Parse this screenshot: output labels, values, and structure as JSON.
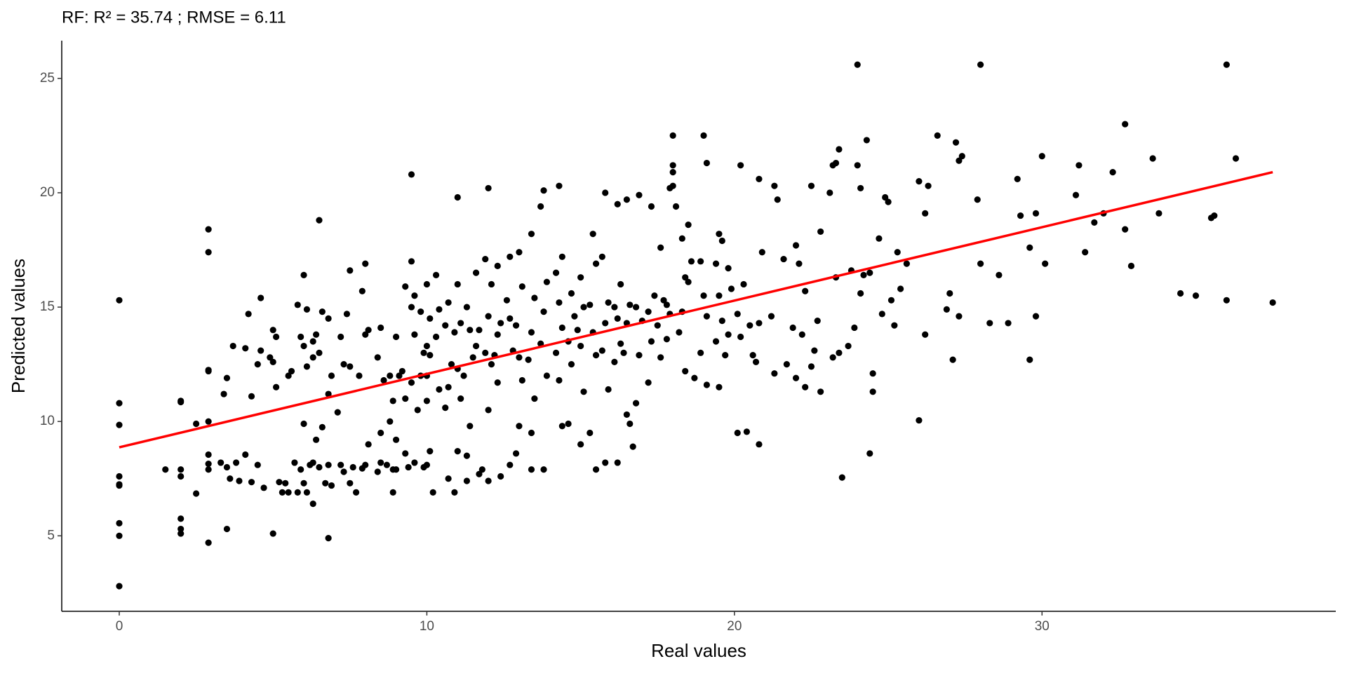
{
  "chart_data": {
    "type": "scatter",
    "title": "RF: R² =  35.74 ; RMSE =  6.11",
    "x_label": "Real values",
    "y_label": "Predicted values",
    "xlim": [
      -1.87,
      39.55
    ],
    "ylim": [
      1.7,
      26.65
    ],
    "xticks": [
      0,
      10,
      20,
      30
    ],
    "yticks": [
      5,
      10,
      15,
      20,
      25
    ],
    "grid": false,
    "color": "#000000",
    "x": [
      0,
      0,
      0,
      0,
      0,
      0,
      0,
      0,
      0,
      1.5,
      2,
      2,
      2,
      2,
      2,
      2,
      2,
      2.5,
      2.5,
      2.9,
      2.9,
      2.9,
      2.9,
      2.9,
      2.9,
      2.9,
      2.9,
      2.9,
      3.5,
      3.3,
      3.6,
      3.5,
      3.4,
      3.5,
      3.8,
      3.9,
      3.7,
      4.2,
      4.1,
      4.3,
      4.1,
      4.3,
      4.5,
      4.6,
      4.5,
      4.7,
      4.6,
      5.0,
      5.1,
      4.9,
      5.0,
      5.1,
      5.2,
      5.3,
      5.0,
      5.4,
      5.5,
      5.6,
      5.5,
      5.8,
      5.9,
      5.7,
      5.9,
      5.8,
      6.0,
      6.1,
      6.0,
      6.1,
      6.0,
      6.2,
      6.0,
      6.1,
      6.3,
      6.4,
      6.3,
      6.4,
      6.3,
      6.3,
      6.5,
      6.6,
      6.5,
      6.6,
      6.5,
      6.7,
      6.8,
      6.9,
      6.8,
      6.8,
      6.9,
      6.8,
      7.2,
      7.3,
      7.1,
      7.2,
      7.3,
      7.5,
      7.4,
      7.5,
      7.6,
      7.5,
      7.8,
      7.9,
      7.7,
      8.0,
      7.9,
      8.1,
      8.0,
      8.1,
      8.0,
      8.5,
      8.4,
      8.6,
      8.5,
      8.5,
      8.4,
      8.8,
      8.9,
      8.8,
      8.7,
      8.9,
      9.0,
      9.1,
      9.0,
      9.0,
      8.9,
      9.3,
      9.2,
      9.3,
      9.3,
      9.4,
      9.5,
      9.5,
      9.6,
      9.5,
      9.6,
      9.5,
      9.6,
      9.8,
      9.9,
      9.8,
      9.7,
      9.9,
      10.0,
      10.1,
      10.0,
      10.1,
      10.0,
      10.0,
      10.1,
      10.0,
      10.3,
      10.4,
      10.3,
      10.4,
      10.2,
      10.7,
      10.6,
      10.8,
      10.7,
      10.6,
      10.7,
      11.0,
      11.0,
      11.1,
      10.9,
      11.0,
      11.1,
      11.0,
      10.9,
      11.3,
      11.4,
      11.2,
      11.4,
      11.3,
      11.3,
      11.6,
      11.7,
      11.6,
      11.5,
      11.7,
      12.0,
      11.9,
      12.1,
      12.0,
      11.9,
      12.1,
      12.0,
      11.8,
      12.0,
      12.3,
      12.4,
      12.3,
      12.2,
      12.3,
      12.4,
      12.7,
      12.6,
      12.7,
      12.8,
      12.7,
      13.0,
      13.1,
      12.9,
      13.0,
      13.1,
      13.0,
      12.9,
      13.4,
      13.5,
      13.4,
      13.3,
      13.5,
      13.4,
      13.4,
      13.8,
      13.7,
      13.9,
      13.8,
      13.7,
      13.9,
      13.8,
      14.3,
      14.4,
      14.2,
      14.3,
      14.4,
      14.2,
      14.3,
      14.4,
      14.7,
      14.8,
      14.6,
      14.7,
      14.6,
      15.0,
      15.1,
      14.9,
      15.0,
      15.1,
      15.0,
      15.4,
      15.5,
      15.3,
      15.4,
      15.5,
      15.3,
      15.5,
      15.8,
      15.7,
      15.9,
      15.8,
      15.7,
      15.9,
      15.8,
      16.2,
      16.3,
      16.1,
      16.2,
      16.3,
      16.1,
      16.2,
      16.5,
      16.6,
      16.5,
      16.4,
      16.5,
      16.6,
      16.9,
      16.8,
      17.0,
      16.9,
      16.8,
      16.7,
      17.3,
      17.4,
      17.2,
      17.3,
      17.2,
      17.6,
      17.7,
      17.5,
      17.6,
      17.9,
      17.8,
      17.9,
      17.8,
      18.0,
      18.0,
      18.0,
      18.0,
      18.1,
      18.3,
      18.4,
      18.3,
      18.4,
      18.2,
      18.5,
      18.6,
      18.5,
      18.7,
      19.0,
      19.1,
      18.9,
      19.0,
      19.1,
      18.9,
      19.1,
      19.5,
      19.6,
      19.4,
      19.5,
      19.6,
      19.4,
      19.5,
      19.8,
      19.9,
      19.8,
      19.7,
      20.2,
      20.3,
      20.1,
      20.2,
      20.1,
      20.5,
      20.6,
      20.4,
      20.8,
      20.9,
      20.8,
      20.7,
      20.8,
      21.3,
      21.4,
      21.2,
      21.3,
      21.6,
      21.7,
      22.0,
      22.1,
      21.9,
      22.0,
      22.3,
      22.2,
      22.3,
      22.5,
      22.6,
      22.5,
      22.8,
      22.7,
      22.8,
      23.2,
      23.1,
      23.3,
      23.2,
      23.4,
      23.3,
      23.4,
      23.5,
      23.8,
      23.9,
      23.7,
      24.0,
      24.1,
      24.0,
      24.2,
      24.1,
      24.3,
      24.4,
      24.5,
      24.4,
      24.5,
      24.7,
      24.8,
      24.9,
      25.0,
      25.1,
      25.3,
      25.4,
      25.2,
      25.6,
      26.0,
      26.0,
      26.2,
      26.3,
      26.2,
      26.6,
      26.9,
      27.0,
      27.1,
      27.2,
      27.3,
      27.3,
      27.4,
      28.0,
      27.9,
      28.0,
      28.3,
      28.6,
      28.9,
      29.2,
      29.3,
      29.6,
      29.6,
      29.8,
      29.8,
      30.0,
      30.1,
      31.2,
      31.1,
      31.4,
      31.7,
      32.0,
      32.3,
      32.7,
      32.7,
      32.9,
      33.6,
      33.8,
      34.5,
      35.0,
      35.6,
      35.5,
      36.0,
      36.0,
      36.3,
      37.5
    ],
    "values": [
      15.3,
      10.8,
      9.85,
      7.6,
      7.25,
      7.2,
      5.55,
      5.0,
      2.8,
      7.9,
      10.9,
      10.85,
      7.9,
      7.6,
      5.75,
      5.3,
      5.1,
      9.9,
      6.85,
      18.4,
      17.4,
      12.25,
      12.2,
      10.0,
      8.55,
      8.15,
      7.9,
      4.7,
      8.0,
      8.2,
      7.5,
      11.9,
      11.2,
      5.3,
      8.2,
      7.4,
      13.3,
      14.7,
      13.2,
      11.1,
      8.55,
      7.35,
      12.5,
      13.1,
      8.1,
      7.1,
      15.4,
      14.0,
      13.7,
      12.8,
      12.6,
      11.5,
      7.35,
      6.9,
      5.1,
      7.3,
      6.9,
      12.2,
      12.0,
      15.1,
      13.7,
      8.2,
      7.9,
      6.9,
      16.4,
      14.9,
      13.3,
      12.4,
      9.9,
      8.1,
      7.3,
      6.9,
      13.5,
      13.8,
      12.8,
      9.2,
      8.2,
      6.4,
      18.8,
      14.8,
      13.0,
      9.75,
      8.0,
      7.3,
      14.5,
      12.0,
      11.2,
      8.1,
      7.2,
      4.9,
      13.7,
      12.5,
      10.4,
      8.1,
      7.8,
      16.6,
      14.7,
      12.4,
      8.0,
      7.3,
      12.0,
      7.95,
      6.9,
      16.9,
      15.7,
      14.0,
      13.8,
      9.0,
      8.1,
      14.1,
      12.8,
      11.8,
      9.5,
      8.2,
      7.8,
      12.0,
      10.9,
      10.0,
      8.1,
      7.9,
      13.7,
      12.0,
      9.2,
      7.9,
      6.9,
      15.9,
      12.2,
      11.0,
      8.6,
      8.0,
      20.8,
      17.0,
      15.5,
      15.0,
      13.8,
      11.7,
      8.2,
      14.8,
      13.0,
      12.0,
      10.5,
      8.0,
      16.0,
      14.5,
      13.3,
      12.9,
      12.0,
      10.9,
      8.7,
      8.1,
      16.4,
      14.9,
      13.7,
      11.4,
      6.9,
      15.2,
      14.2,
      12.5,
      11.5,
      10.6,
      7.5,
      19.8,
      16.0,
      14.3,
      13.9,
      12.3,
      11.0,
      8.7,
      6.9,
      15.0,
      14.0,
      12.0,
      9.8,
      8.5,
      7.4,
      16.5,
      14.0,
      13.3,
      12.8,
      7.7,
      20.2,
      17.1,
      16.0,
      14.6,
      13.0,
      12.5,
      10.5,
      7.9,
      7.4,
      16.8,
      14.3,
      13.8,
      12.9,
      11.7,
      7.6,
      17.2,
      15.3,
      14.5,
      13.1,
      8.1,
      17.4,
      15.9,
      14.2,
      12.8,
      11.8,
      9.8,
      8.6,
      18.2,
      15.4,
      13.9,
      12.7,
      11.0,
      9.5,
      7.9,
      20.1,
      19.4,
      16.1,
      14.8,
      13.4,
      12.0,
      7.9,
      20.3,
      17.2,
      16.5,
      15.2,
      14.1,
      13.0,
      11.8,
      9.8,
      15.6,
      14.6,
      13.5,
      12.5,
      9.9,
      16.3,
      15.0,
      14.0,
      13.3,
      11.3,
      9.0,
      18.2,
      16.9,
      15.1,
      13.9,
      12.9,
      9.5,
      7.9,
      20.0,
      17.2,
      15.2,
      14.3,
      13.1,
      11.4,
      8.2,
      19.5,
      16.0,
      15.0,
      14.5,
      13.4,
      12.6,
      8.2,
      19.7,
      15.1,
      14.3,
      13.0,
      10.3,
      9.9,
      19.9,
      15.0,
      14.4,
      12.9,
      10.8,
      8.9,
      19.4,
      15.5,
      14.8,
      13.5,
      11.7,
      17.6,
      15.3,
      14.2,
      12.8,
      20.2,
      15.1,
      14.7,
      13.6,
      22.5,
      21.2,
      20.9,
      20.3,
      19.4,
      18.0,
      16.3,
      14.8,
      12.2,
      13.9,
      18.6,
      17.0,
      16.1,
      11.9,
      22.5,
      21.3,
      17.0,
      15.5,
      14.6,
      13.0,
      11.6,
      18.2,
      17.9,
      16.9,
      15.5,
      14.4,
      13.5,
      11.5,
      16.7,
      15.8,
      13.8,
      12.9,
      21.2,
      16.0,
      14.7,
      13.7,
      9.5,
      14.2,
      12.9,
      9.55,
      20.6,
      17.4,
      14.3,
      12.6,
      9.0,
      20.3,
      19.7,
      14.6,
      12.1,
      17.1,
      12.5,
      17.7,
      16.9,
      14.1,
      11.9,
      15.7,
      13.8,
      11.5,
      20.3,
      13.1,
      12.4,
      18.3,
      14.4,
      11.3,
      21.2,
      20.0,
      16.3,
      12.8,
      21.9,
      21.3,
      13.0,
      7.55,
      16.6,
      14.1,
      13.3,
      25.6,
      20.2,
      21.2,
      16.4,
      15.6,
      22.3,
      16.5,
      12.1,
      8.6,
      11.3,
      18.0,
      14.7,
      19.8,
      19.6,
      15.3,
      17.4,
      15.8,
      14.2,
      16.9,
      20.5,
      10.05,
      19.1,
      20.3,
      13.8,
      22.5,
      14.9,
      15.6,
      12.7,
      22.2,
      21.4,
      14.6,
      21.6,
      25.6,
      19.7,
      16.9,
      14.3,
      16.4,
      14.3,
      20.6,
      19.0,
      17.6,
      12.7,
      19.1,
      14.6,
      21.6,
      16.9,
      21.2,
      19.9,
      17.4,
      18.7,
      19.1,
      20.9,
      23.0,
      18.4,
      16.8,
      21.5,
      19.1,
      15.6,
      15.5,
      19.0,
      18.9,
      25.6,
      15.3,
      21.5,
      15.2
    ],
    "fit_line": {
      "color": "#ff0000",
      "x": [
        0,
        37.5
      ],
      "y": [
        8.87,
        20.9
      ]
    }
  }
}
